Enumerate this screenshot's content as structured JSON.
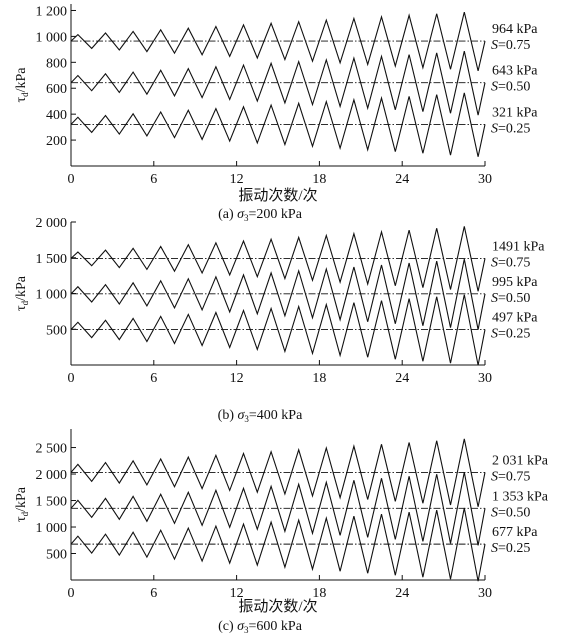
{
  "chart_data": [
    {
      "type": "line",
      "caption_prefix": "(a)",
      "caption_sigma": "σ",
      "caption_sub": "3",
      "caption_value": "=200 kPa",
      "xlabel": "振动次数/次",
      "ylabel_tau": "τ",
      "ylabel_sub": "d",
      "ylabel_unit": "/kPa",
      "xlim": [
        0,
        30
      ],
      "ylim": [
        0,
        1250
      ],
      "xticks": [
        0,
        6,
        12,
        18,
        24,
        30
      ],
      "xtick_labels": [
        "0",
        "6",
        "12",
        "18",
        "24",
        "30"
      ],
      "yticks": [
        200,
        400,
        600,
        800,
        1000,
        1200
      ],
      "ytick_labels": [
        "200",
        "400",
        "600",
        "800",
        "1 000",
        "1 200"
      ],
      "series": [
        {
          "mean": 964,
          "mean_label": "964 kPa",
          "s_prefix": "S",
          "s_value": "=0.75",
          "amp_start": 50,
          "amp_end": 230
        },
        {
          "mean": 643,
          "mean_label": "643 kPa",
          "s_prefix": "S",
          "s_value": "=0.50",
          "amp_start": 55,
          "amp_end": 250
        },
        {
          "mean": 321,
          "mean_label": "321 kPa",
          "s_prefix": "S",
          "s_value": "=0.25",
          "amp_start": 55,
          "amp_end": 250
        }
      ]
    },
    {
      "type": "line",
      "caption_prefix": "(b)",
      "caption_sigma": "σ",
      "caption_sub": "3",
      "caption_value": "=400 kPa",
      "xlabel": "",
      "ylabel_tau": "τ",
      "ylabel_sub": "d",
      "ylabel_unit": "/kPa",
      "xlim": [
        0,
        30
      ],
      "ylim": [
        0,
        2000
      ],
      "xticks": [
        0,
        6,
        12,
        18,
        24,
        30
      ],
      "xtick_labels": [
        "0",
        "6",
        "12",
        "18",
        "24",
        "30"
      ],
      "yticks": [
        500,
        1000,
        1500,
        2000
      ],
      "ytick_labels": [
        "500",
        "1 000",
        "1 500",
        "2 000"
      ],
      "series": [
        {
          "mean": 1491,
          "mean_label": "1491 kPa",
          "s_prefix": "S",
          "s_value": "=0.75",
          "amp_start": 90,
          "amp_end": 460
        },
        {
          "mean": 995,
          "mean_label": "995 kPa",
          "s_prefix": "S",
          "s_value": "=0.50",
          "amp_start": 100,
          "amp_end": 500
        },
        {
          "mean": 497,
          "mean_label": "497 kPa",
          "s_prefix": "S",
          "s_value": "=0.25",
          "amp_start": 100,
          "amp_end": 500
        }
      ]
    },
    {
      "type": "line",
      "caption_prefix": "(c)",
      "caption_sigma": "σ",
      "caption_sub": "3",
      "caption_value": "=600 kPa",
      "xlabel": "振动次数/次",
      "ylabel_tau": "τ",
      "ylabel_sub": "d",
      "ylabel_unit": "/kPa",
      "xlim": [
        0,
        30
      ],
      "ylim": [
        0,
        2850
      ],
      "xticks": [
        0,
        6,
        12,
        18,
        24,
        30
      ],
      "xtick_labels": [
        "0",
        "6",
        "12",
        "18",
        "24",
        "30"
      ],
      "yticks": [
        500,
        1000,
        1500,
        2000,
        2500
      ],
      "ytick_labels": [
        "500",
        "1 000",
        "1 500",
        "2 000",
        "2 500"
      ],
      "series": [
        {
          "mean": 2031,
          "mean_label": "2 031 kPa",
          "s_prefix": "S",
          "s_value": "=0.75",
          "amp_start": 150,
          "amp_end": 650
        },
        {
          "mean": 1353,
          "mean_label": "1 353 kPa",
          "s_prefix": "S",
          "s_value": "=0.50",
          "amp_start": 150,
          "amp_end": 700
        },
        {
          "mean": 677,
          "mean_label": "677 kPa",
          "s_prefix": "S",
          "s_value": "=0.25",
          "amp_start": 150,
          "amp_end": 700
        }
      ]
    }
  ]
}
